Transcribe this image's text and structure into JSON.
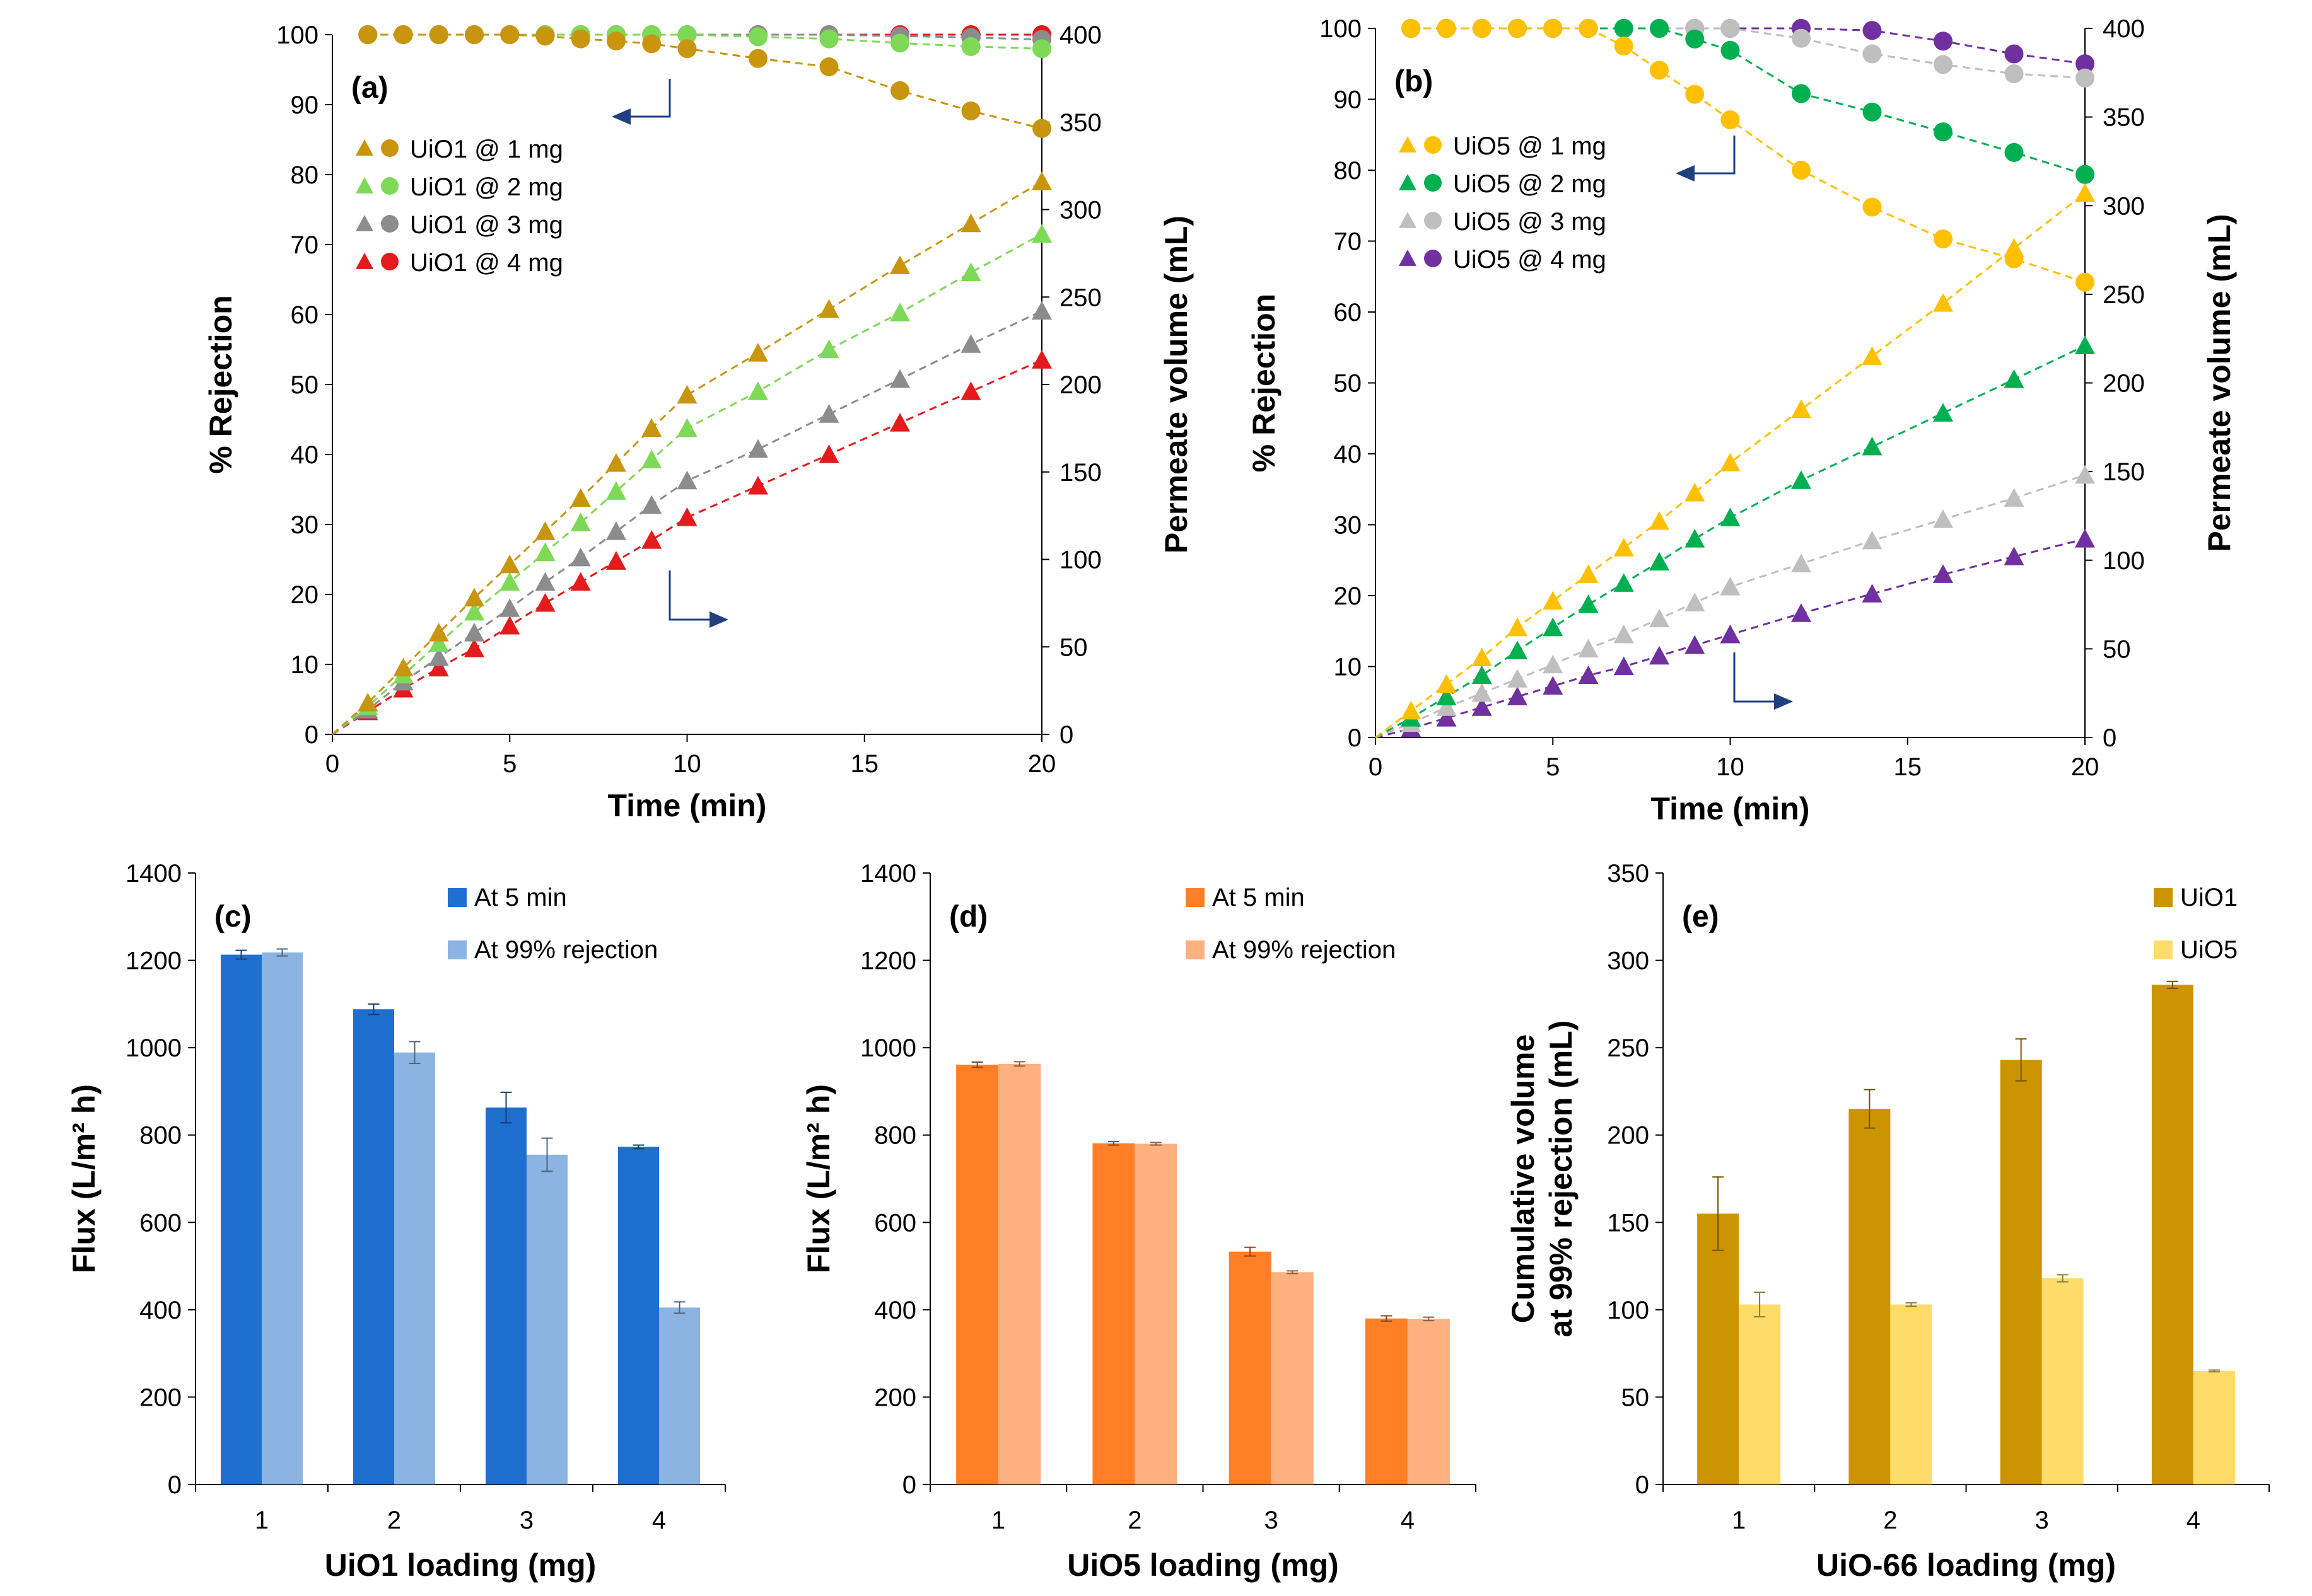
{
  "chart_data": [
    {
      "panel": "(a)",
      "type": "line",
      "xlabel": "Time (min)",
      "ylabel_left": "% Rejection",
      "ylabel_right": "Permeate volume (mL)",
      "xlim": [
        0,
        20
      ],
      "ylim_left": [
        0,
        100
      ],
      "ylim_right": [
        0,
        400
      ],
      "xticks": [
        "0",
        "5",
        "10",
        "15",
        "20"
      ],
      "yticks_left": [
        "0",
        "10",
        "20",
        "30",
        "40",
        "50",
        "60",
        "70",
        "80",
        "90",
        "100"
      ],
      "yticks_right": [
        "0",
        "50",
        "100",
        "150",
        "200",
        "250",
        "300",
        "350",
        "400"
      ],
      "legend": [
        "UiO1 @ 1 mg",
        "UiO1 @ 2 mg",
        "UiO1 @ 3 mg",
        "UiO1 @ 4 mg"
      ],
      "colors": [
        "#C9950F",
        "#7ED957",
        "#8C8C8C",
        "#E41A1C"
      ],
      "time": [
        1,
        2,
        3,
        4,
        5,
        6,
        7,
        8,
        9,
        10,
        12,
        14,
        16,
        18,
        20
      ],
      "rejection": [
        {
          "name": "UiO1 @ 1 mg",
          "values": [
            100,
            100,
            100,
            100,
            100,
            99.8,
            99.4,
            99.1,
            98.7,
            98.0,
            96.6,
            95.4,
            92.0,
            89.1,
            86.6
          ]
        },
        {
          "name": "UiO1 @ 2 mg",
          "values": [
            100,
            100,
            100,
            100,
            100,
            100,
            100,
            100,
            100,
            100,
            99.7,
            99.4,
            98.8,
            98.3,
            98.0
          ]
        },
        {
          "name": "UiO1 @ 3 mg",
          "values": [
            100,
            100,
            100,
            100,
            100,
            100,
            100,
            100,
            100,
            100,
            100,
            100,
            99.8,
            99.6,
            99.3
          ]
        },
        {
          "name": "UiO1 @ 4 mg",
          "values": [
            100,
            100,
            100,
            100,
            100,
            100,
            100,
            100,
            100,
            100,
            100,
            100,
            100,
            100,
            100
          ]
        }
      ],
      "volume": [
        {
          "name": "UiO1 @ 1 mg",
          "values": [
            18,
            38,
            58,
            78,
            97,
            116,
            135,
            155,
            175,
            194,
            218,
            243,
            268,
            292,
            316
          ]
        },
        {
          "name": "UiO1 @ 2 mg",
          "values": [
            16,
            34,
            52,
            70,
            87,
            104,
            121,
            139,
            157,
            175,
            196,
            220,
            241,
            264,
            286
          ]
        },
        {
          "name": "UiO1 @ 3 mg",
          "values": [
            14,
            30,
            44,
            58,
            72,
            87,
            101,
            116,
            131,
            145,
            163,
            183,
            203,
            223,
            242
          ]
        },
        {
          "name": "UiO1 @ 4 mg",
          "values": [
            13,
            26,
            38,
            49,
            62,
            75,
            87,
            99,
            111,
            124,
            142,
            160,
            178,
            196,
            214
          ]
        }
      ]
    },
    {
      "panel": "(b)",
      "type": "line",
      "xlabel": "Time (min)",
      "ylabel_left": "% Rejection",
      "ylabel_right": "Permeate volume (mL)",
      "xlim": [
        0,
        20
      ],
      "ylim_left": [
        0,
        100
      ],
      "ylim_right": [
        0,
        400
      ],
      "xticks": [
        "0",
        "5",
        "10",
        "15",
        "20"
      ],
      "yticks_left": [
        "0",
        "10",
        "20",
        "30",
        "40",
        "50",
        "60",
        "70",
        "80",
        "90",
        "100"
      ],
      "yticks_right": [
        "0",
        "50",
        "100",
        "150",
        "200",
        "250",
        "300",
        "350",
        "400"
      ],
      "legend": [
        "UiO5 @ 1 mg",
        "UiO5 @ 2 mg",
        "UiO5 @ 3 mg",
        "UiO5 @ 4 mg"
      ],
      "colors": [
        "#FFC000",
        "#00B050",
        "#BFBFBF",
        "#7030A0"
      ],
      "time": [
        1,
        2,
        3,
        4,
        5,
        6,
        7,
        8,
        9,
        10,
        12,
        14,
        16,
        18,
        20
      ],
      "rejection": [
        {
          "name": "UiO5 @ 1 mg",
          "values": [
            100,
            100,
            100,
            100,
            100,
            100,
            97.5,
            94.1,
            90.7,
            87.1,
            80.0,
            74.8,
            70.3,
            67.5,
            64.2
          ]
        },
        {
          "name": "UiO5 @ 2 mg",
          "values": [
            100,
            100,
            100,
            100,
            100,
            100,
            100,
            100,
            98.5,
            96.9,
            90.8,
            88.2,
            85.4,
            82.5,
            79.4
          ]
        },
        {
          "name": "UiO5 @ 3 mg",
          "values": [
            100,
            100,
            100,
            100,
            100,
            100,
            100,
            100,
            100,
            100,
            98.6,
            96.4,
            94.9,
            93.6,
            93.0
          ]
        },
        {
          "name": "UiO5 @ 4 mg",
          "values": [
            100,
            100,
            100,
            100,
            100,
            100,
            100,
            100,
            100,
            100,
            100,
            99.7,
            98.2,
            96.4,
            95.0
          ]
        }
      ],
      "volume": [
        {
          "name": "UiO5 @ 1 mg",
          "values": [
            15,
            30,
            45,
            62,
            77,
            92,
            107,
            122,
            138,
            155,
            185,
            215,
            245,
            276,
            307
          ]
        },
        {
          "name": "UiO5 @ 2 mg",
          "values": [
            11,
            23,
            35,
            49,
            62,
            75,
            87,
            99,
            112,
            124,
            145,
            164,
            183,
            202,
            221
          ]
        },
        {
          "name": "UiO5 @ 3 mg",
          "values": [
            8,
            17,
            25,
            33,
            41,
            50,
            58,
            67,
            76,
            85,
            98,
            111,
            123,
            135,
            148
          ]
        },
        {
          "name": "UiO5 @ 4 mg",
          "values": [
            5,
            11,
            17,
            23,
            29,
            35,
            40,
            46,
            52,
            58,
            70,
            81,
            92,
            102,
            112
          ]
        }
      ]
    },
    {
      "panel": "(c)",
      "type": "bar",
      "xlabel": "UiO1 loading (mg)",
      "ylabel": "Flux (L/m² h)",
      "ylim": [
        0,
        1400
      ],
      "yticks": [
        "0",
        "200",
        "400",
        "600",
        "800",
        "1000",
        "1200",
        "1400"
      ],
      "categories": [
        "1",
        "2",
        "3",
        "4"
      ],
      "series": [
        {
          "name": "At 5 min",
          "color": "#1F6FCF",
          "values": [
            1213,
            1088,
            863,
            773
          ],
          "errors": [
            10,
            12,
            35,
            4
          ]
        },
        {
          "name": "At 99% rejection",
          "color": "#8CB4E2",
          "values": [
            1218,
            989,
            755,
            405
          ],
          "errors": [
            8,
            25,
            38,
            13
          ]
        }
      ]
    },
    {
      "panel": "(d)",
      "type": "bar",
      "xlabel": "UiO5 loading (mg)",
      "ylabel": "Flux (L/m² h)",
      "ylim": [
        0,
        1400
      ],
      "yticks": [
        "0",
        "200",
        "400",
        "600",
        "800",
        "1000",
        "1200",
        "1400"
      ],
      "categories": [
        "1",
        "2",
        "3",
        "4"
      ],
      "series": [
        {
          "name": "At 5 min",
          "color": "#FF7F27",
          "values": [
            961,
            781,
            533,
            380
          ],
          "errors": [
            6,
            4,
            10,
            6
          ]
        },
        {
          "name": "At 99% rejection",
          "color": "#FFB07F",
          "values": [
            963,
            780,
            486,
            379
          ],
          "errors": [
            5,
            3,
            3,
            4
          ]
        }
      ]
    },
    {
      "panel": "(e)",
      "type": "bar",
      "xlabel": "UiO-66 loading (mg)",
      "ylabel_lines": [
        "Cumulative volume",
        "at 99% rejection (mL)"
      ],
      "ylim": [
        0,
        350
      ],
      "yticks": [
        "0",
        "50",
        "100",
        "150",
        "200",
        "250",
        "300",
        "350"
      ],
      "categories": [
        "1",
        "2",
        "3",
        "4"
      ],
      "series": [
        {
          "name": "UiO1",
          "color": "#CC9500",
          "values": [
            155,
            215,
            243,
            286
          ],
          "errors": [
            21,
            11,
            12,
            2
          ]
        },
        {
          "name": "UiO5",
          "color": "#FFDB6A",
          "values": [
            103,
            103,
            118,
            65
          ],
          "errors": [
            7,
            1,
            2,
            0.5
          ]
        }
      ]
    }
  ]
}
